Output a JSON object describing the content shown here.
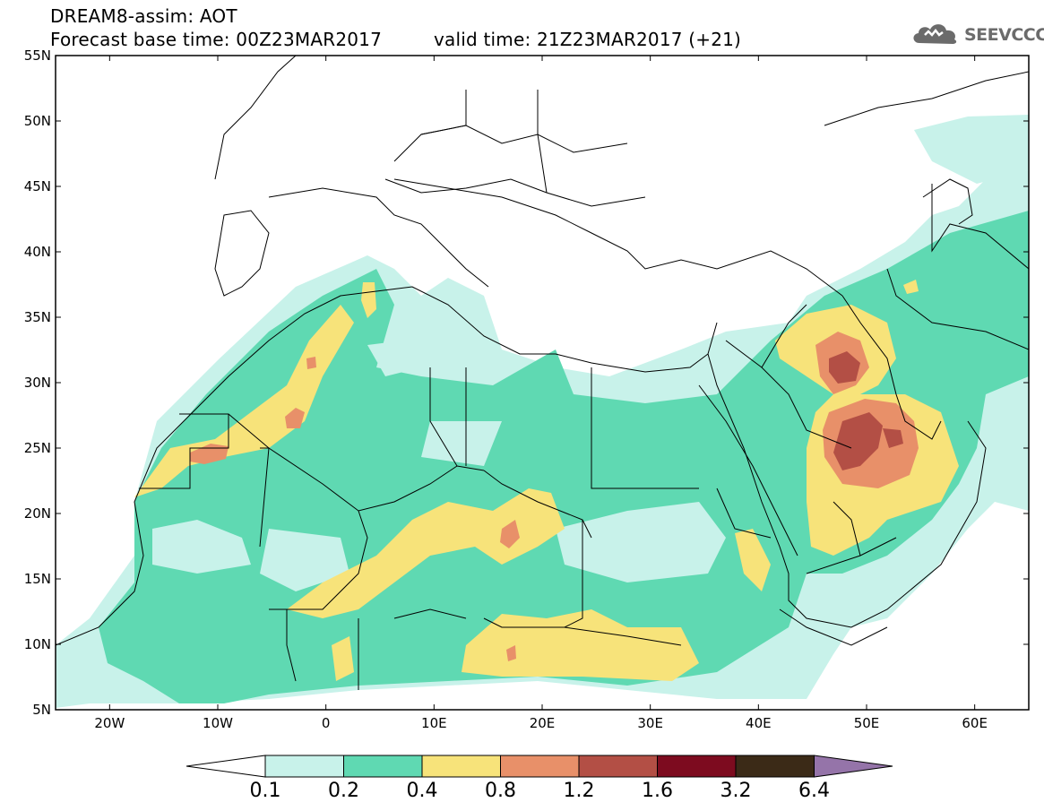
{
  "header": {
    "product": "DREAM8-assim: AOT",
    "base_time": "Forecast base time: 00Z23MAR2017",
    "valid_time": "valid time: 21Z23MAR2017 (+21)"
  },
  "logo": {
    "name": "SEEVCCC",
    "icon": "cloud-icon"
  },
  "map": {
    "projection": "lat-lon",
    "lon_range": [
      -25,
      65
    ],
    "lat_range": [
      5,
      55
    ],
    "lat_labels": [
      "5N",
      "10N",
      "15N",
      "20N",
      "25N",
      "30N",
      "35N",
      "40N",
      "45N",
      "50N",
      "55N"
    ],
    "lon_labels": [
      "20W",
      "10W",
      "0",
      "10E",
      "20E",
      "30E",
      "40E",
      "50E",
      "60E"
    ]
  },
  "colorbar": {
    "labels": [
      "0.1",
      "0.2",
      "0.4",
      "0.8",
      "1.2",
      "1.6",
      "3.2",
      "6.4"
    ],
    "colors": [
      "#ffffff",
      "#c8f2ea",
      "#5fd9b2",
      "#f7e37a",
      "#e89069",
      "#b34f45",
      "#7d0b1f",
      "#3b2a17",
      "#9574a9"
    ]
  }
}
